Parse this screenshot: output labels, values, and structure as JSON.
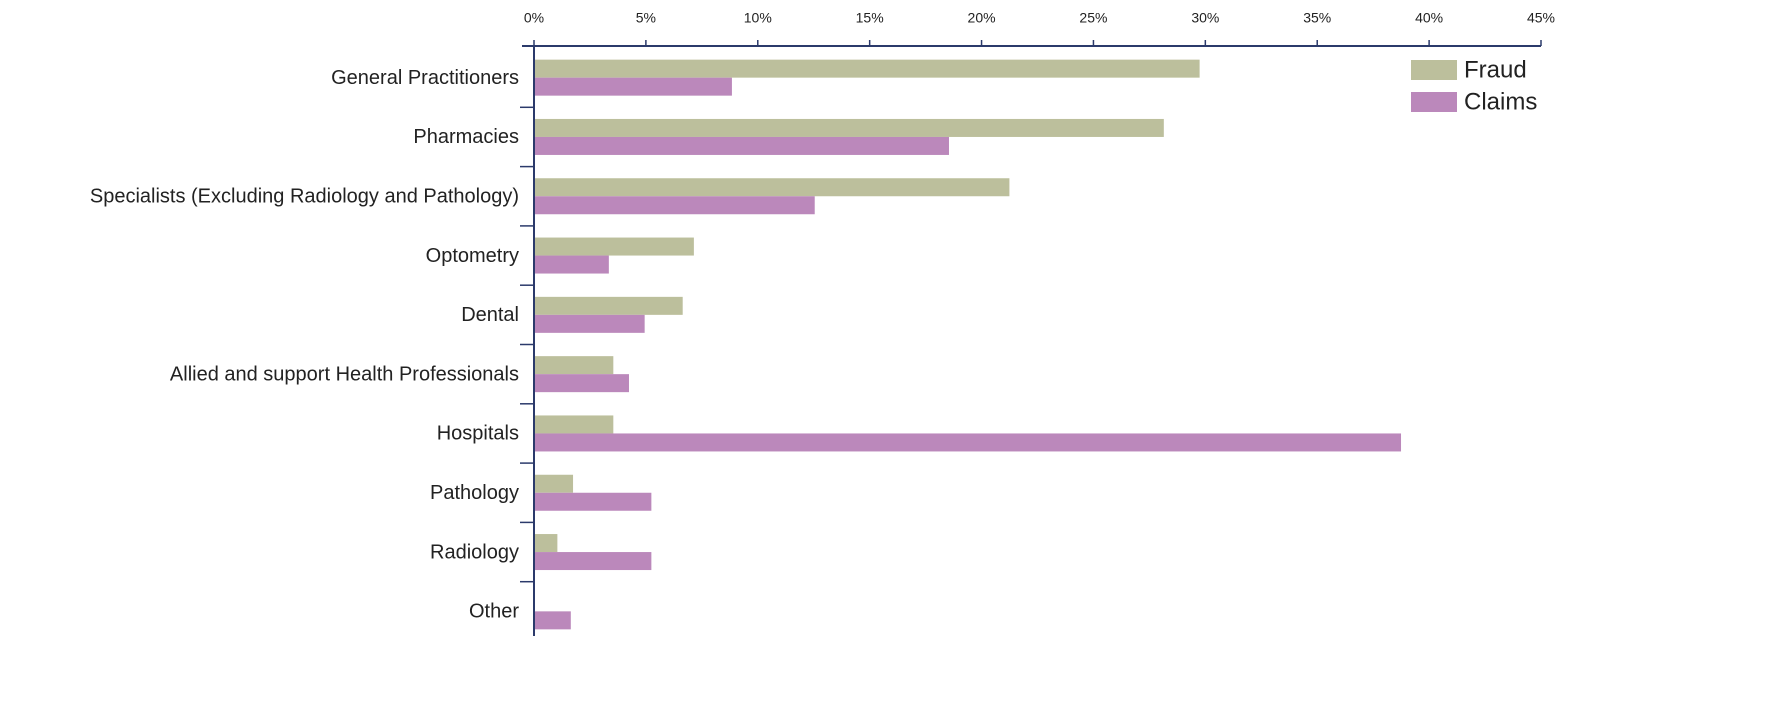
{
  "chart_data": {
    "type": "bar",
    "orientation": "horizontal",
    "categories": [
      "General Practitioners",
      "Pharmacies",
      "Specialists (Excluding Radiology and Pathology)",
      "Optometry",
      "Dental",
      "Allied and support Health Professionals",
      "Hospitals",
      "Pathology",
      "Radiology",
      "Other"
    ],
    "series": [
      {
        "name": "Fraud",
        "color": "#bcbf9c",
        "values": [
          29.7,
          28.1,
          21.2,
          7.1,
          6.6,
          3.5,
          3.5,
          1.7,
          1.0,
          0
        ]
      },
      {
        "name": "Claims",
        "color": "#bb88bb",
        "values": [
          8.8,
          18.5,
          12.5,
          3.3,
          4.9,
          4.2,
          38.7,
          5.2,
          5.2,
          1.6
        ]
      }
    ],
    "xlim": [
      0,
      45
    ],
    "xticks": [
      {
        "value": 0,
        "label": "0%"
      },
      {
        "value": 5,
        "label": "5%"
      },
      {
        "value": 10,
        "label": "10%"
      },
      {
        "value": 15,
        "label": "15%"
      },
      {
        "value": 20,
        "label": "20%"
      },
      {
        "value": 25,
        "label": "25%"
      },
      {
        "value": 30,
        "label": "30%"
      },
      {
        "value": 35,
        "label": "35%"
      },
      {
        "value": 40,
        "label": "40%"
      },
      {
        "value": 45,
        "label": "45%"
      }
    ],
    "legend": "top-right"
  }
}
